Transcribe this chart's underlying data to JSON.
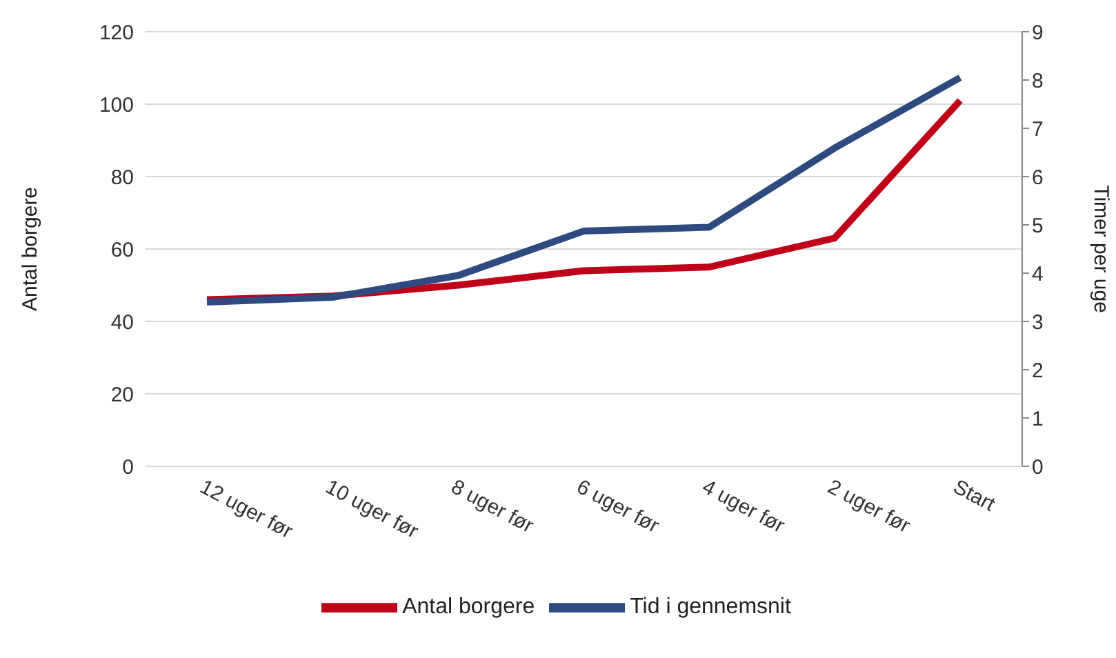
{
  "chart_data": {
    "type": "line",
    "ylabel": "Antal borgere",
    "y2label": "Timer per uge",
    "categories": [
      "12 uger før",
      "10 uger før",
      "8 uger før",
      "6 uger før",
      "4 uger før",
      "2 uger før",
      "Start"
    ],
    "series": [
      {
        "name": "Antal borgere",
        "color": "#c00018",
        "values": [
          46,
          47,
          50,
          54,
          55,
          63,
          101
        ]
      },
      {
        "name": "Tid i gennemsnit",
        "color": "#2e4a80",
        "axis": "y2",
        "values": [
          3.4,
          3.5,
          3.95,
          4.87,
          4.95,
          6.59,
          8.05
        ]
      }
    ],
    "ylim": [
      0,
      120
    ],
    "yticks": [
      0,
      20,
      40,
      60,
      80,
      100,
      120
    ],
    "y2lim": [
      0,
      9
    ],
    "y2ticks": [
      0,
      1,
      2,
      3,
      4,
      5,
      6,
      7,
      8,
      9
    ],
    "grid": "y",
    "legend": "bottom",
    "marker": "none",
    "line_style": "solid"
  }
}
